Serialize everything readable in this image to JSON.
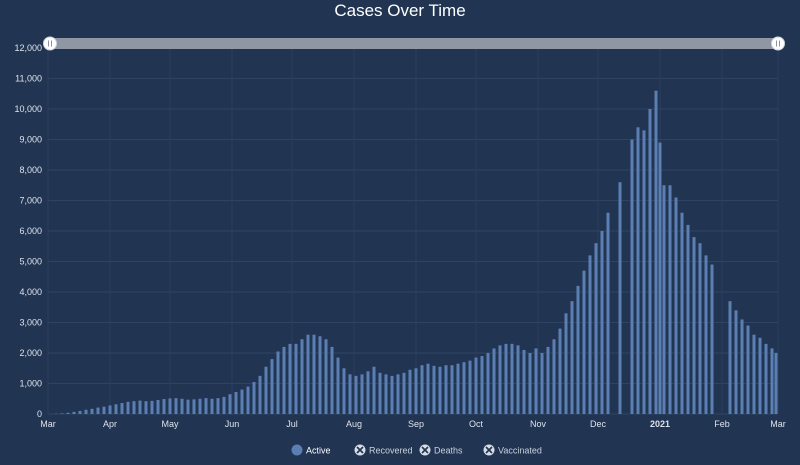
{
  "title": "Cases Over Time",
  "chart_data": {
    "type": "bar",
    "title": "Cases Over Time",
    "ylim": [
      0,
      12000
    ],
    "yticks": [
      0,
      1000,
      2000,
      3000,
      4000,
      5000,
      6000,
      7000,
      8000,
      9000,
      10000,
      11000,
      12000
    ],
    "ytick_labels": [
      "0",
      "1,000",
      "2,000",
      "3,000",
      "4,000",
      "5,000",
      "6,000",
      "7,000",
      "8,000",
      "9,000",
      "10,000",
      "11,000",
      "12,000"
    ],
    "x_start": "2020-03-01",
    "x_end": "2021-03-01",
    "xticks": [
      {
        "date": "2020-03-01",
        "label": "Mar"
      },
      {
        "date": "2020-04-01",
        "label": "Apr"
      },
      {
        "date": "2020-05-01",
        "label": "May"
      },
      {
        "date": "2020-06-01",
        "label": "Jun"
      },
      {
        "date": "2020-07-01",
        "label": "Jul"
      },
      {
        "date": "2020-08-01",
        "label": "Aug"
      },
      {
        "date": "2020-09-01",
        "label": "Sep"
      },
      {
        "date": "2020-10-01",
        "label": "Oct"
      },
      {
        "date": "2020-11-01",
        "label": "Nov"
      },
      {
        "date": "2020-12-01",
        "label": "Dec"
      },
      {
        "date": "2021-01-01",
        "label": "2021",
        "bold": true
      },
      {
        "date": "2021-02-01",
        "label": "Feb"
      },
      {
        "date": "2021-03-01",
        "label": "Mar"
      }
    ],
    "grid": true,
    "legend_position": "bottom-center",
    "legend": [
      {
        "label": "Active",
        "enabled": true
      },
      {
        "label": "Recovered",
        "enabled": false
      },
      {
        "label": "Deaths",
        "enabled": false
      },
      {
        "label": "Vaccinated",
        "enabled": false
      }
    ],
    "series": [
      {
        "name": "Active",
        "color": "#5b7fb3",
        "points": [
          [
            "2020-03-05",
            8
          ],
          [
            "2020-03-08",
            20
          ],
          [
            "2020-03-11",
            40
          ],
          [
            "2020-03-14",
            70
          ],
          [
            "2020-03-17",
            100
          ],
          [
            "2020-03-20",
            140
          ],
          [
            "2020-03-23",
            170
          ],
          [
            "2020-03-26",
            210
          ],
          [
            "2020-03-29",
            240
          ],
          [
            "2020-04-01",
            280
          ],
          [
            "2020-04-04",
            320
          ],
          [
            "2020-04-07",
            360
          ],
          [
            "2020-04-10",
            400
          ],
          [
            "2020-04-13",
            420
          ],
          [
            "2020-04-16",
            440
          ],
          [
            "2020-04-19",
            420
          ],
          [
            "2020-04-22",
            430
          ],
          [
            "2020-04-25",
            460
          ],
          [
            "2020-04-28",
            490
          ],
          [
            "2020-05-01",
            510
          ],
          [
            "2020-05-04",
            520
          ],
          [
            "2020-05-07",
            500
          ],
          [
            "2020-05-10",
            470
          ],
          [
            "2020-05-13",
            480
          ],
          [
            "2020-05-16",
            500
          ],
          [
            "2020-05-19",
            520
          ],
          [
            "2020-05-22",
            500
          ],
          [
            "2020-05-25",
            520
          ],
          [
            "2020-05-28",
            560
          ],
          [
            "2020-05-31",
            650
          ],
          [
            "2020-06-03",
            720
          ],
          [
            "2020-06-06",
            800
          ],
          [
            "2020-06-09",
            900
          ],
          [
            "2020-06-12",
            1050
          ],
          [
            "2020-06-15",
            1250
          ],
          [
            "2020-06-18",
            1550
          ],
          [
            "2020-06-21",
            1800
          ],
          [
            "2020-06-24",
            2050
          ],
          [
            "2020-06-27",
            2200
          ],
          [
            "2020-06-30",
            2300
          ],
          [
            "2020-07-03",
            2300
          ],
          [
            "2020-07-06",
            2450
          ],
          [
            "2020-07-09",
            2600
          ],
          [
            "2020-07-12",
            2600
          ],
          [
            "2020-07-15",
            2550
          ],
          [
            "2020-07-18",
            2450
          ],
          [
            "2020-07-21",
            2200
          ],
          [
            "2020-07-24",
            1850
          ],
          [
            "2020-07-27",
            1500
          ],
          [
            "2020-07-30",
            1300
          ],
          [
            "2020-08-02",
            1250
          ],
          [
            "2020-08-05",
            1300
          ],
          [
            "2020-08-08",
            1400
          ],
          [
            "2020-08-11",
            1550
          ],
          [
            "2020-08-14",
            1350
          ],
          [
            "2020-08-17",
            1300
          ],
          [
            "2020-08-20",
            1250
          ],
          [
            "2020-08-23",
            1300
          ],
          [
            "2020-08-26",
            1350
          ],
          [
            "2020-08-29",
            1450
          ],
          [
            "2020-09-01",
            1500
          ],
          [
            "2020-09-04",
            1600
          ],
          [
            "2020-09-07",
            1650
          ],
          [
            "2020-09-10",
            1580
          ],
          [
            "2020-09-13",
            1550
          ],
          [
            "2020-09-16",
            1600
          ],
          [
            "2020-09-19",
            1600
          ],
          [
            "2020-09-22",
            1650
          ],
          [
            "2020-09-25",
            1700
          ],
          [
            "2020-09-28",
            1750
          ],
          [
            "2020-10-01",
            1850
          ],
          [
            "2020-10-04",
            1900
          ],
          [
            "2020-10-07",
            2000
          ],
          [
            "2020-10-10",
            2150
          ],
          [
            "2020-10-13",
            2250
          ],
          [
            "2020-10-16",
            2300
          ],
          [
            "2020-10-19",
            2300
          ],
          [
            "2020-10-22",
            2250
          ],
          [
            "2020-10-25",
            2100
          ],
          [
            "2020-10-28",
            2000
          ],
          [
            "2020-10-31",
            2150
          ],
          [
            "2020-11-03",
            2000
          ],
          [
            "2020-11-06",
            2200
          ],
          [
            "2020-11-09",
            2450
          ],
          [
            "2020-11-12",
            2800
          ],
          [
            "2020-11-15",
            3300
          ],
          [
            "2020-11-18",
            3700
          ],
          [
            "2020-11-21",
            4200
          ],
          [
            "2020-11-24",
            4700
          ],
          [
            "2020-11-27",
            5200
          ],
          [
            "2020-11-30",
            5600
          ],
          [
            "2020-12-03",
            6000
          ],
          [
            "2020-12-06",
            6600
          ],
          [
            "2020-12-12",
            7600
          ],
          [
            "2020-12-18",
            9000
          ],
          [
            "2020-12-21",
            9400
          ],
          [
            "2020-12-24",
            9300
          ],
          [
            "2020-12-27",
            10000
          ],
          [
            "2020-12-30",
            10600
          ],
          [
            "2021-01-01",
            8900
          ],
          [
            "2021-01-03",
            7500
          ],
          [
            "2021-01-06",
            7500
          ],
          [
            "2021-01-09",
            7100
          ],
          [
            "2021-01-12",
            6600
          ],
          [
            "2021-01-15",
            6200
          ],
          [
            "2021-01-18",
            5800
          ],
          [
            "2021-01-21",
            5600
          ],
          [
            "2021-01-24",
            5200
          ],
          [
            "2021-01-27",
            4900
          ],
          [
            "2021-02-05",
            3700
          ],
          [
            "2021-02-08",
            3400
          ],
          [
            "2021-02-11",
            3100
          ],
          [
            "2021-02-14",
            2900
          ],
          [
            "2021-02-17",
            2600
          ],
          [
            "2021-02-20",
            2500
          ],
          [
            "2021-02-23",
            2300
          ],
          [
            "2021-02-26",
            2150
          ],
          [
            "2021-02-28",
            2000
          ]
        ]
      }
    ]
  }
}
